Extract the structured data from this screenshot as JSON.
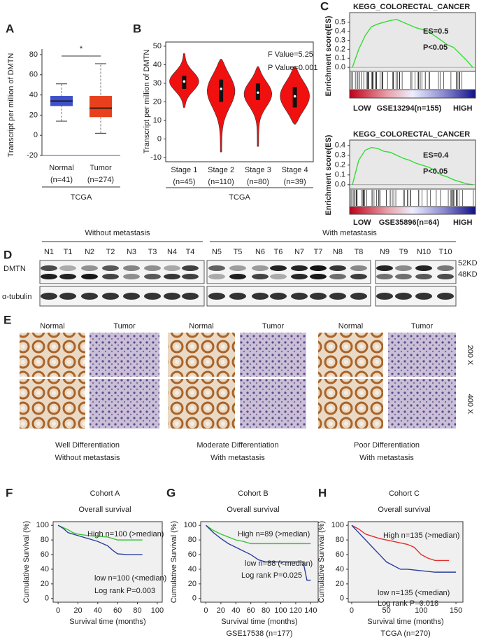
{
  "chart_data": [
    {
      "type": "box",
      "panel": "A",
      "ylabel": "Transcript per million of DMTN",
      "xlabel": "TCGA",
      "annotation": "*",
      "categories": [
        "Normal",
        "Tumor"
      ],
      "category_notes": [
        "(n=41)",
        "(n=274)"
      ],
      "colors": [
        "#3f51c8",
        "#e8401c"
      ],
      "boxes": [
        {
          "min": 14,
          "q1": 29,
          "median": 34,
          "q3": 39,
          "max": 51
        },
        {
          "min": 2,
          "q1": 18,
          "median": 27,
          "q3": 39,
          "max": 71
        }
      ],
      "ylim": [
        -20,
        80
      ],
      "yticks": [
        -20,
        0,
        20,
        40,
        60,
        80
      ]
    },
    {
      "type": "violin",
      "panel": "B",
      "ylabel": "Transcript per million of DMTN",
      "xlabel": "TCGA",
      "annotations": [
        "F Value=5.25",
        "P Value=0.001"
      ],
      "categories": [
        "Stage 1",
        "Stage 2",
        "Stage 3",
        "Stage 4"
      ],
      "category_notes": [
        "(n=45)",
        "(n=110)",
        "(n=80)",
        "(n=39)"
      ],
      "color": "#f01010",
      "violins": [
        {
          "min": 17,
          "q1": 27,
          "median": 31,
          "q3": 34,
          "max": 46
        },
        {
          "min": -7,
          "q1": 20,
          "median": 27,
          "q3": 32,
          "max": 43
        },
        {
          "min": -4,
          "q1": 21,
          "median": 25,
          "q3": 30,
          "max": 39
        },
        {
          "min": 8,
          "q1": 17,
          "median": 23,
          "q3": 28,
          "max": 39
        }
      ],
      "ylim": [
        -10,
        50
      ],
      "yticks": [
        -10,
        0,
        10,
        20,
        30,
        40,
        50
      ]
    },
    {
      "type": "gsea",
      "panel": "C",
      "title": "KEGG_COLORECTAL_CANCER",
      "ylabel": "Enrichment score(ES)",
      "annotations": [
        "ES=0.5",
        "P<0.05"
      ],
      "dataset": "GSE13294(n=155)",
      "low": "LOW",
      "high": "HIGH",
      "color": "#33dd33",
      "values": [
        0,
        0.2,
        0.35,
        0.45,
        0.48,
        0.5,
        0.52,
        0.53,
        0.5,
        0.47,
        0.44,
        0.42,
        0.4,
        0.35,
        0.3,
        0.25,
        0.22,
        0.15,
        0.08,
        0
      ],
      "ylim": [
        -0.03,
        0.56
      ],
      "yticks": [
        {
          "value": 0,
          "label": "0.0"
        },
        0.1,
        0.2,
        0.3,
        0.4,
        0.5
      ]
    },
    {
      "type": "gsea",
      "title": "KEGG_COLORECTAL_CANCER",
      "ylabel": "Enrichment score(ES)",
      "annotations": [
        "ES=0.4",
        "P<0.05"
      ],
      "dataset": "GSE35896(n=64)",
      "low": "LOW",
      "high": "HIGH",
      "color": "#33dd33",
      "values": [
        0,
        0.25,
        0.35,
        0.38,
        0.37,
        0.34,
        0.33,
        0.3,
        0.27,
        0.25,
        0.22,
        0.2,
        0.18,
        0.15,
        0.1,
        0.08,
        0.05,
        0.03,
        0.01,
        0
      ],
      "ylim": [
        -0.03,
        0.42
      ],
      "yticks": [
        {
          "value": 0,
          "label": "0.0"
        },
        0.1,
        0.2,
        0.3,
        0.4
      ]
    },
    {
      "type": "km",
      "panel": "F",
      "title": "Cohort A",
      "subtitle": "Overall survival",
      "ylabel": "Cumulative Survival (%)",
      "xlabel": "Survival time (months)",
      "annotations": [
        "High n=100 (>median)",
        "low n=100 (<median)",
        "Log rank P=0.003"
      ],
      "series": [
        {
          "color": "#3cc43c",
          "x": [
            0,
            5,
            10,
            15,
            20,
            30,
            40,
            50,
            60,
            70,
            80,
            85
          ],
          "values": [
            100,
            97,
            94,
            90,
            88,
            86,
            85,
            84,
            80,
            80,
            80,
            80
          ]
        },
        {
          "color": "#2b3f9e",
          "x": [
            0,
            5,
            10,
            20,
            30,
            40,
            50,
            55,
            60,
            70,
            80,
            85
          ],
          "values": [
            100,
            96,
            90,
            86,
            82,
            78,
            72,
            66,
            61,
            60,
            60,
            60
          ]
        }
      ],
      "xlim": [
        -5,
        105
      ],
      "xticks": [
        0,
        20,
        40,
        60,
        80,
        100
      ],
      "ylim": [
        -5,
        105
      ],
      "yticks": [
        0,
        20,
        40,
        60,
        80,
        100
      ]
    },
    {
      "type": "km",
      "panel": "G",
      "title": "Cohort B",
      "subtitle": "Overall survival",
      "ylabel": "Cumulative Survival (%)",
      "xlabel": "Survival time (months)",
      "footer": "GSE17538 (n=177)",
      "annotations": [
        "High n=89 (>median)",
        "low  n=88 (<median)",
        "Log rank P=0.025"
      ],
      "series": [
        {
          "color": "#3cc43c",
          "x": [
            0,
            10,
            20,
            30,
            40,
            50,
            60,
            70,
            80,
            100,
            120,
            140
          ],
          "values": [
            100,
            93,
            88,
            84,
            80,
            78,
            75,
            75,
            75,
            75,
            75,
            75
          ]
        },
        {
          "color": "#2b3f9e",
          "x": [
            0,
            10,
            20,
            30,
            40,
            50,
            60,
            70,
            80,
            100,
            120,
            130,
            135,
            140
          ],
          "values": [
            100,
            90,
            82,
            75,
            70,
            65,
            60,
            53,
            50,
            50,
            50,
            50,
            25,
            25
          ]
        }
      ],
      "xlim": [
        -7,
        150
      ],
      "xticks": [
        0,
        20,
        40,
        60,
        80,
        100,
        120,
        140
      ],
      "ylim": [
        -5,
        105
      ],
      "yticks": [
        0,
        20,
        40,
        60,
        80,
        100
      ]
    },
    {
      "type": "km",
      "panel": "H",
      "title": "Cohort C",
      "subtitle": "Overall survival",
      "ylabel": "Cumulative Survival (%)",
      "xlabel": "Survival time (months)",
      "footer": "TCGA (n=270)",
      "annotations": [
        "High n=135 (>median)",
        "low  n=135 (<median)",
        "Log rank P=0.018"
      ],
      "series": [
        {
          "color": "#e0302a",
          "x": [
            0,
            10,
            20,
            30,
            40,
            50,
            60,
            70,
            80,
            90,
            100,
            110,
            120,
            140
          ],
          "values": [
            100,
            95,
            88,
            85,
            82,
            80,
            78,
            76,
            74,
            70,
            60,
            55,
            52,
            52
          ]
        },
        {
          "color": "#2b3f9e",
          "x": [
            0,
            10,
            20,
            30,
            40,
            50,
            60,
            70,
            80,
            100,
            120,
            150
          ],
          "values": [
            100,
            90,
            80,
            70,
            60,
            50,
            45,
            40,
            40,
            38,
            36,
            36
          ]
        }
      ],
      "xlim": [
        -5,
        160
      ],
      "xticks": [
        0,
        50,
        100,
        150
      ],
      "ylim": [
        -5,
        105
      ],
      "yticks": [
        0,
        20,
        40,
        60,
        80,
        100
      ]
    }
  ],
  "blot": {
    "panel": "D",
    "groups": [
      "Without metastasis",
      "With metastasis"
    ],
    "lanes": [
      "N1",
      "T1",
      "N2",
      "T2",
      "N3",
      "T3",
      "N4",
      "T4",
      "N5",
      "T5",
      "N6",
      "T6",
      "N7",
      "T7",
      "N8",
      "T8",
      "N9",
      "T9",
      "N10",
      "T10"
    ],
    "proteins": [
      "DMTN",
      "α-tubulin"
    ],
    "sizes": [
      "52KD",
      "48KD"
    ]
  },
  "histology": {
    "panel": "E",
    "columns": [
      "Normal",
      "Tumor",
      "Normal",
      "Tumor",
      "Normal",
      "Tumor"
    ],
    "magnifications": [
      "200 X",
      "400 X"
    ],
    "grades": [
      "Well Differentiation",
      "Moderate Differentiation",
      "Poor Differentiation"
    ],
    "metastasis": [
      "Without metastasis",
      "With metastasis",
      "With metastasis"
    ]
  }
}
